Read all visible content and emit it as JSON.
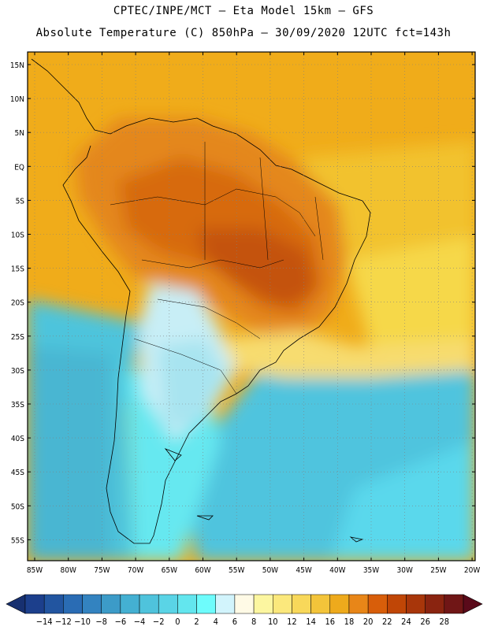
{
  "header": {
    "line1": "CPTEC/INPE/MCT –  Eta Model 15km – GFS",
    "line2": "Absolute Temperature (C) 850hPa – 30/09/2020 12UTC fct=143h"
  },
  "axes": {
    "lat_labels": [
      "15N",
      "10N",
      "5N",
      "EQ",
      "5S",
      "10S",
      "15S",
      "20S",
      "25S",
      "30S",
      "35S",
      "40S",
      "45S",
      "50S",
      "55S"
    ],
    "lon_labels": [
      "85W",
      "80W",
      "75W",
      "70W",
      "65W",
      "60W",
      "55W",
      "50W",
      "45W",
      "40W",
      "35W",
      "30W",
      "25W",
      "20W"
    ]
  },
  "colorbar": {
    "labels": [
      "-14",
      "-12",
      "-10",
      "-8",
      "-6",
      "-4",
      "-2",
      "0",
      "2",
      "4",
      "6",
      "8",
      "10",
      "12",
      "14",
      "16",
      "18",
      "20",
      "22",
      "24",
      "26",
      "28"
    ],
    "colors": [
      "#1c3f8c",
      "#2255a0",
      "#2a6cb4",
      "#3383c0",
      "#3c9bc8",
      "#44b0d2",
      "#4fc3dc",
      "#5ad4e6",
      "#63e6ee",
      "#6efcfc",
      "#d2f4fc",
      "#fffae6",
      "#fcf6a0",
      "#fbe87c",
      "#f8d85a",
      "#f3c43a",
      "#eeaa1c",
      "#e88618",
      "#d85e0a",
      "#c04606",
      "#a8360a",
      "#8a2410",
      "#701616"
    ],
    "under_color": "#173070",
    "over_color": "#5a0a1a"
  }
}
